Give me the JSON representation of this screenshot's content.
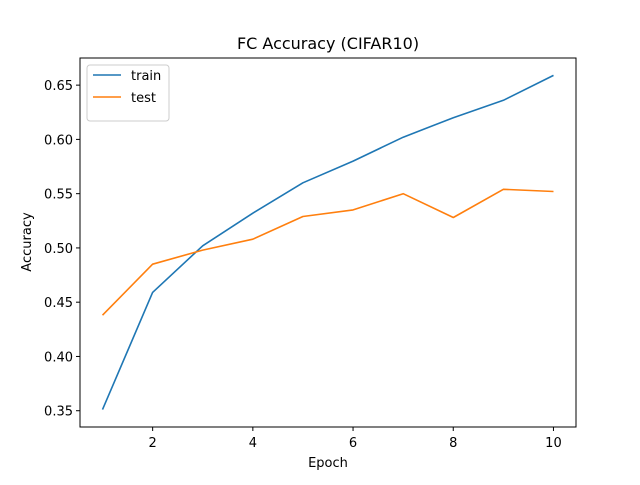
{
  "chart_data": {
    "type": "line",
    "title": "FC Accuracy (CIFAR10)",
    "xlabel": "Epoch",
    "ylabel": "Accuracy",
    "x": [
      1,
      2,
      3,
      4,
      5,
      6,
      7,
      8,
      9,
      10
    ],
    "series": [
      {
        "name": "train",
        "color": "#1f77b4",
        "values": [
          0.351,
          0.459,
          0.502,
          0.532,
          0.56,
          0.58,
          0.602,
          0.62,
          0.636,
          0.659
        ]
      },
      {
        "name": "test",
        "color": "#ff7f0e",
        "values": [
          0.438,
          0.485,
          0.498,
          0.508,
          0.529,
          0.535,
          0.55,
          0.528,
          0.554,
          0.552
        ]
      }
    ],
    "xlim": [
      0.55,
      10.45
    ],
    "ylim": [
      0.335,
      0.675
    ],
    "xticks": [
      2,
      4,
      6,
      8,
      10
    ],
    "yticks": [
      0.35,
      0.4,
      0.45,
      0.5,
      0.55,
      0.6,
      0.65
    ],
    "ytick_labels": [
      "0.35",
      "0.40",
      "0.45",
      "0.50",
      "0.55",
      "0.60",
      "0.65"
    ],
    "grid": false,
    "legend_position": "top-left"
  }
}
